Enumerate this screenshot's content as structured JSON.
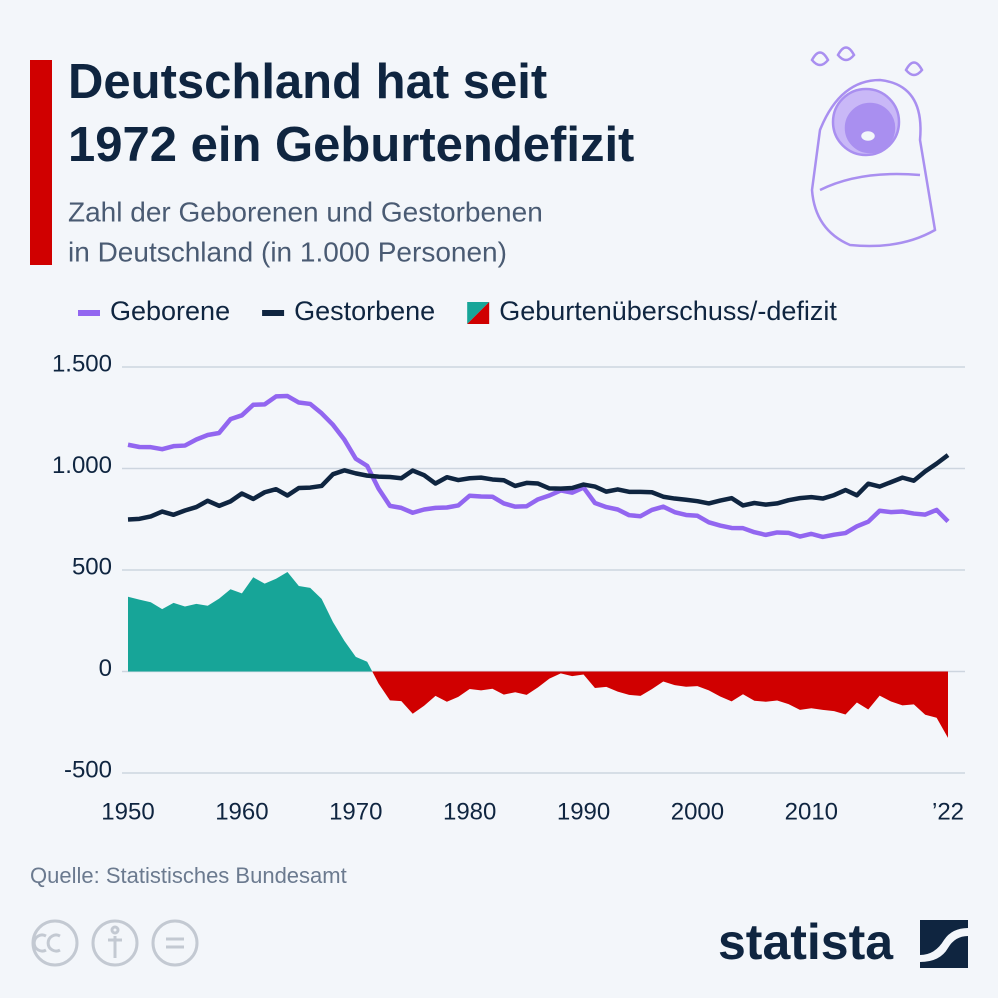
{
  "chart_data": {
    "type": "line",
    "title": [
      "Deutschland hat seit",
      "1972 ein Geburtendefizit"
    ],
    "subtitle": [
      "Zahl der Geborenen und Gestorbenen",
      "in Deutschland (in 1.000 Personen)"
    ],
    "source": "Quelle: Statistisches Bundesamt",
    "brand": "statista",
    "x": [
      1950,
      1951,
      1952,
      1953,
      1954,
      1955,
      1956,
      1957,
      1958,
      1959,
      1960,
      1961,
      1962,
      1963,
      1964,
      1965,
      1966,
      1967,
      1968,
      1969,
      1970,
      1971,
      1972,
      1973,
      1974,
      1975,
      1976,
      1977,
      1978,
      1979,
      1980,
      1981,
      1982,
      1983,
      1984,
      1985,
      1986,
      1987,
      1988,
      1989,
      1990,
      1991,
      1992,
      1993,
      1994,
      1995,
      1996,
      1997,
      1998,
      1999,
      2000,
      2001,
      2002,
      2003,
      2004,
      2005,
      2006,
      2007,
      2008,
      2009,
      2010,
      2011,
      2012,
      2013,
      2014,
      2015,
      2016,
      2017,
      2018,
      2019,
      2020,
      2021,
      2022
    ],
    "series": [
      {
        "name": "Geborene",
        "color": "#9266f0",
        "values": [
          1117,
          1106,
          1105,
          1095,
          1110,
          1113,
          1143,
          1165,
          1175,
          1243,
          1262,
          1314,
          1316,
          1355,
          1357,
          1325,
          1318,
          1272,
          1215,
          1142,
          1048,
          1013,
          901,
          816,
          806,
          782,
          798,
          806,
          808,
          818,
          866,
          862,
          861,
          828,
          812,
          814,
          848,
          867,
          892,
          881,
          906,
          830,
          810,
          798,
          770,
          765,
          796,
          812,
          785,
          771,
          767,
          735,
          719,
          707,
          706,
          686,
          673,
          685,
          683,
          665,
          678,
          663,
          674,
          682,
          715,
          738,
          792,
          785,
          788,
          778,
          773,
          796,
          739
        ]
      },
      {
        "name": "Gestorbene",
        "color": "#0f2540",
        "values": [
          749,
          752,
          764,
          788,
          772,
          793,
          810,
          841,
          816,
          838,
          877,
          850,
          883,
          898,
          867,
          904,
          906,
          914,
          972,
          991,
          976,
          965,
          960,
          958,
          952,
          990,
          967,
          926,
          957,
          943,
          952,
          955,
          946,
          942,
          914,
          929,
          926,
          902,
          901,
          904,
          921,
          911,
          886,
          897,
          885,
          885,
          883,
          861,
          852,
          846,
          839,
          828,
          842,
          854,
          818,
          830,
          822,
          828,
          844,
          854,
          859,
          852,
          869,
          894,
          868,
          925,
          911,
          933,
          955,
          940,
          986,
          1024,
          1066
        ]
      },
      {
        "name": "Geburtenüberschuss/-defizit",
        "type": "area",
        "color": "#17a598",
        "negative_color": "#d00000",
        "values": [
          368,
          354,
          341,
          307,
          338,
          320,
          333,
          324,
          359,
          405,
          385,
          464,
          433,
          457,
          490,
          421,
          412,
          358,
          243,
          151,
          72,
          48,
          -59,
          -142,
          -146,
          -208,
          -169,
          -120,
          -149,
          -125,
          -86,
          -93,
          -85,
          -114,
          -102,
          -115,
          -78,
          -35,
          -9,
          -23,
          -15,
          -81,
          -76,
          -99,
          -115,
          -120,
          -87,
          -49,
          -67,
          -75,
          -72,
          -93,
          -123,
          -147,
          -112,
          -144,
          -149,
          -143,
          -161,
          -189,
          -181,
          -189,
          -195,
          -212,
          -153,
          -187,
          -119,
          -148,
          -167,
          -162,
          -213,
          -228,
          -327
        ]
      }
    ],
    "xlim": [
      1950,
      2022
    ],
    "xticks": [
      1950,
      1960,
      1970,
      1980,
      1990,
      2000,
      2010,
      {
        "value": 2022,
        "label": "’22"
      }
    ],
    "ylim": [
      -500,
      1500
    ],
    "yticks": [
      {
        "value": 1500,
        "label": "1.500"
      },
      {
        "value": 1000,
        "label": "1.000"
      },
      500,
      0,
      -500
    ],
    "grid": true
  }
}
